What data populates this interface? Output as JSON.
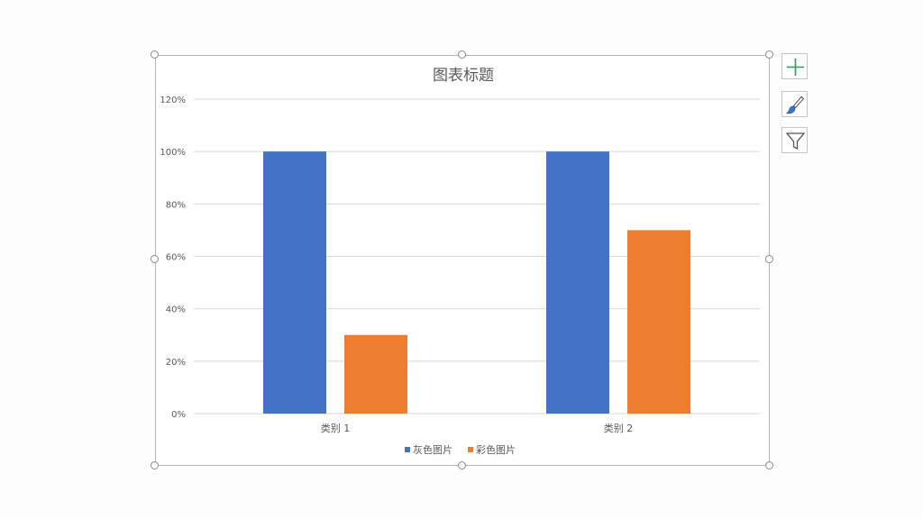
{
  "colors": {
    "series_gray": "#4472c4",
    "series_color": "#ed7d31",
    "gridline": "#d9d9d9",
    "tick_text": "#595959",
    "title_text": "#595959",
    "plus_icon": "#2e9e4f",
    "brush_icon": "#3b78c8"
  },
  "chart_tools": {
    "add_element_icon": "plus-icon",
    "style_icon": "paintbrush-icon",
    "filter_icon": "funnel-icon"
  },
  "chart_data": {
    "type": "bar",
    "title": "图表标题",
    "xlabel": "",
    "ylabel": "",
    "categories": [
      "类别 1",
      "类别 2"
    ],
    "series": [
      {
        "name": "灰色图片",
        "values": [
          100,
          100
        ]
      },
      {
        "name": "彩色图片",
        "values": [
          30,
          70
        ]
      }
    ],
    "yticks": [
      "0%",
      "20%",
      "40%",
      "60%",
      "80%",
      "100%",
      "120%"
    ],
    "ylim": [
      0,
      120
    ],
    "y_unit": "percent",
    "grid": true,
    "legend_position": "bottom"
  }
}
